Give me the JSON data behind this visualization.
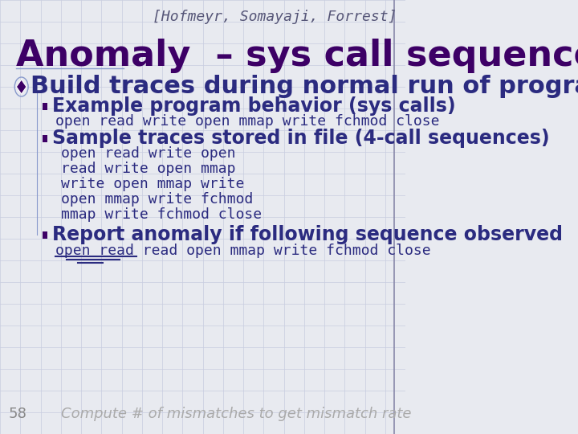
{
  "bg_color": "#e8eaf0",
  "title_text": "Anomaly  – sys call sequences",
  "title_color": "#3d0066",
  "title_fontsize": 32,
  "header_text": "[Hofmeyr, Somayaji, Forrest]",
  "header_color": "#555577",
  "header_fontsize": 13,
  "slide_number": "58",
  "slide_number_color": "#888888",
  "bullet_color": "#2b2b80",
  "bullet1_text": "Build traces during normal run of program",
  "bullet1_fontsize": 22,
  "sub_bullet_fontsize": 17,
  "sub_sub_fontsize": 13,
  "sub1_text": "Example program behavior (sys calls)",
  "sub1_detail": "open read write open mmap write fchmod close",
  "sub2_text": "Sample traces stored in file (4-call sequences)",
  "sub2_details": [
    "open read write open",
    "read write open mmap",
    "write open mmap write",
    "open mmap write fchmod",
    "mmap write fchmod close"
  ],
  "sub3_text": "Report anomaly if following sequence observed",
  "sub3_detail": "open read read open mmap write fchmod close",
  "footer_text": "Compute # of mismatches to get mismatch rate",
  "footer_color": "#aaaaaa",
  "footer_fontsize": 13,
  "grid_color": "#c8cce0",
  "diamond_color": "#3d0066",
  "square_bullet_color": "#3d0066"
}
